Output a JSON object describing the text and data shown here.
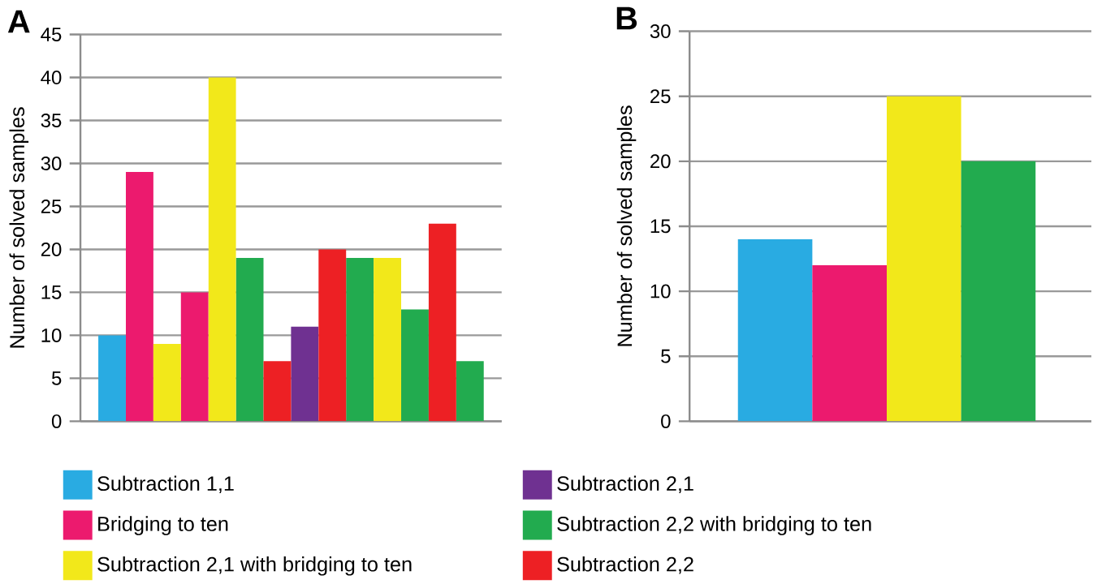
{
  "chart_data": [
    {
      "type": "bar",
      "title": "A",
      "ylabel": "Number of solved samples",
      "categories": [
        null,
        null,
        null,
        null,
        null,
        null,
        null,
        null,
        null,
        null,
        null,
        null,
        null,
        null
      ],
      "series": [
        {
          "name": "Subtraction 1,1",
          "color": "#29abe2",
          "values": [
            10,
            null,
            null,
            null,
            null,
            null,
            null,
            null,
            null,
            null,
            null,
            null,
            null,
            null
          ]
        },
        {
          "name": "Subtraction 2,1",
          "color": "#6f3191",
          "values": [
            null,
            null,
            null,
            null,
            null,
            null,
            null,
            11,
            null,
            null,
            null,
            null,
            null,
            null
          ]
        },
        {
          "name": "Bridging to ten",
          "color": "#ec1a6e",
          "values": [
            null,
            29,
            null,
            15,
            null,
            null,
            null,
            null,
            null,
            null,
            null,
            null,
            null,
            null
          ]
        },
        {
          "name": "Subtraction 2,2 with bridging to ten",
          "color": "#22ab4f",
          "values": [
            null,
            null,
            null,
            null,
            null,
            19,
            null,
            null,
            null,
            19,
            null,
            13,
            null,
            7
          ]
        },
        {
          "name": "Subtraction 2,1 with bridging to ten",
          "color": "#f2e81a",
          "values": [
            null,
            null,
            9,
            null,
            40,
            null,
            null,
            null,
            null,
            null,
            19,
            null,
            null,
            null
          ]
        },
        {
          "name": "Subtraction 2,2",
          "color": "#ed2024",
          "values": [
            null,
            null,
            null,
            null,
            null,
            null,
            7,
            null,
            20,
            null,
            null,
            null,
            23,
            null
          ]
        }
      ],
      "ylim": [
        0,
        45
      ],
      "yticks": [
        0,
        5,
        10,
        15,
        20,
        25,
        30,
        35,
        40,
        45
      ],
      "grid": "y",
      "legend": "bottom"
    },
    {
      "type": "bar",
      "title": "B",
      "ylabel": "Number of solved samples",
      "categories": [
        null,
        null,
        null,
        null
      ],
      "values": [
        14,
        12,
        25,
        20
      ],
      "colors": [
        "#29abe2",
        "#ec1a6e",
        "#f2e81a",
        "#22ab4f"
      ],
      "ylim": [
        0,
        30
      ],
      "yticks": [
        0,
        5,
        10,
        15,
        20,
        25,
        30
      ],
      "grid": "y"
    }
  ]
}
